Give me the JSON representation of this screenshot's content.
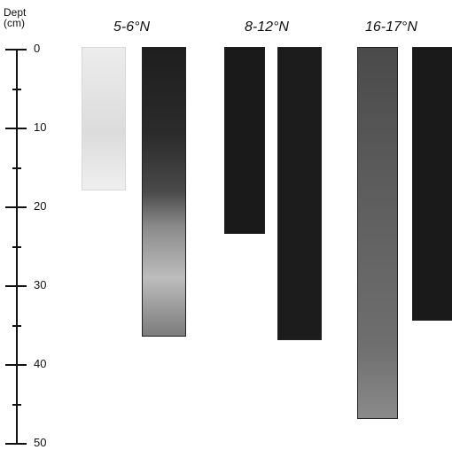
{
  "axis": {
    "title_line1": "Dept",
    "title_line2": "(cm)",
    "labels": [
      "0",
      "10",
      "20",
      "30",
      "40",
      "50"
    ],
    "min": 0,
    "max": 50
  },
  "groups": [
    {
      "label": "5-6°N"
    },
    {
      "label": "8-12°N"
    },
    {
      "label": "16-17°N"
    }
  ],
  "cores": [
    {
      "group": 0,
      "depth_cm": 18,
      "color": "#e4e4e4"
    },
    {
      "group": 0,
      "depth_cm": 36.5,
      "color": "#3a3a3a"
    },
    {
      "group": 1,
      "depth_cm": 23.5,
      "color": "#1a1a1a"
    },
    {
      "group": 1,
      "depth_cm": 37,
      "color": "#1c1c1c"
    },
    {
      "group": 2,
      "depth_cm": 47,
      "color": "#5a5a5a"
    },
    {
      "group": 2,
      "depth_cm": 34.5,
      "color": "#1a1a1a"
    }
  ]
}
